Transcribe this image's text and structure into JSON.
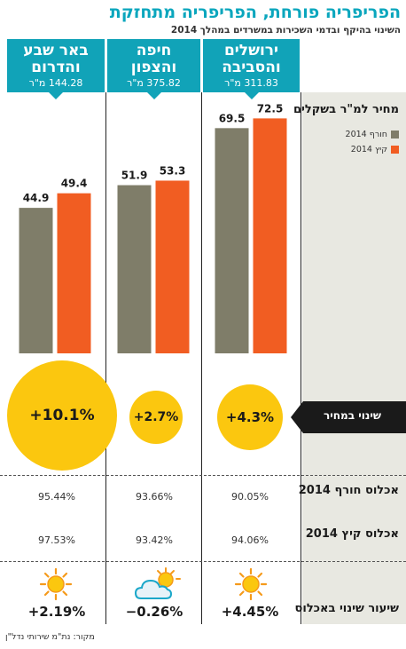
{
  "title": "הפריפריה פורחת, הפריפריה מתחזקת",
  "subtitle": "השינוי בהיקף ובדמי השכירות במשרדים במהלך 2014",
  "source": "מקור: נת\"מ שירותי נדל\"ן",
  "colors": {
    "header": "#11a3b8",
    "winter": "#7f7d69",
    "summer": "#f15d22",
    "circle": "#fbc70f",
    "title": "#0aa6bd"
  },
  "row_labels": {
    "price": "מחיר למ\"ר בשקלים",
    "change": "שינוי במחיר",
    "occ_winter": "אכלוס חורף 2014",
    "occ_summer": "אכלוס קיץ 2014",
    "occ_change": "שיעור שינוי באכלוס"
  },
  "regions": [
    {
      "name_line1": "ירושלים",
      "name_line2": "והסביבה",
      "area": "311.83 מ\"ר",
      "change": "+4.3%",
      "occ_winter": "90.05%",
      "occ_summer": "94.06%",
      "occ_change": "+4.45%",
      "weather_icon": "sun-icon"
    },
    {
      "name_line1": "חיפה",
      "name_line2": "והצפון",
      "area": "375.82 מ\"ר",
      "change": "+2.7%",
      "occ_winter": "93.66%",
      "occ_summer": "93.42%",
      "occ_change": "−0.26%",
      "weather_icon": "cloud-sun-icon"
    },
    {
      "name_line1": "באר שבע",
      "name_line2": "והדרום",
      "area": "144.28 מ\"ר",
      "change": "+10.1%",
      "occ_winter": "95.44%",
      "occ_summer": "97.53%",
      "occ_change": "+2.19%",
      "weather_icon": "sun-icon"
    }
  ],
  "chart_data": {
    "type": "bar",
    "ylabel": "מחיר למ\"ר בשקלים",
    "categories": [
      "ירושלים והסביבה",
      "חיפה והצפון",
      "באר שבע והדרום"
    ],
    "series": [
      {
        "name": "חורף 2014",
        "values": [
          69.5,
          51.9,
          44.9
        ],
        "color": "#7f7d69"
      },
      {
        "name": "קיץ 2014",
        "values": [
          72.5,
          53.3,
          49.4
        ],
        "color": "#f15d22"
      }
    ],
    "ylim": [
      0,
      80
    ],
    "legend": "right",
    "grid": false
  }
}
